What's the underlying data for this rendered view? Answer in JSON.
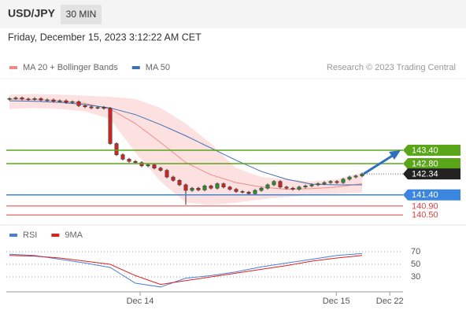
{
  "header": {
    "symbol": "USD/JPY",
    "interval": "30 MIN",
    "datetime": "Friday, December 15, 2023 3:12:22 AM CET",
    "credit": "Research © 2023 Trading Central"
  },
  "chart_data": [
    {
      "type": "candlestick",
      "xlim": [
        -0.5,
        62.5
      ],
      "ylim": [
        140.19,
        146.26
      ],
      "up_color": "#2e8b2e",
      "down_color": "#c62828",
      "candles": {
        "open": [
          145.7,
          145.72,
          145.75,
          145.7,
          145.68,
          145.72,
          145.65,
          145.66,
          145.6,
          145.62,
          145.55,
          145.58,
          145.4,
          145.35,
          145.3,
          145.32,
          145.28,
          143.7,
          143.2,
          143.0,
          142.9,
          142.85,
          142.7,
          142.75,
          142.6,
          142.5,
          142.2,
          142.05,
          141.85,
          141.6,
          141.7,
          141.62,
          141.8,
          141.7,
          141.9,
          141.75,
          141.65,
          141.55,
          141.52,
          141.45,
          141.6,
          141.7,
          141.85,
          142.0,
          141.75,
          141.7,
          141.65,
          141.75,
          141.8,
          141.85,
          141.9,
          141.95,
          142.0,
          141.95,
          142.1,
          142.2,
          142.25
        ],
        "high": [
          145.78,
          145.81,
          145.81,
          145.76,
          145.78,
          145.78,
          145.72,
          145.72,
          145.68,
          145.68,
          145.64,
          145.64,
          145.46,
          145.41,
          145.38,
          145.38,
          145.34,
          143.76,
          143.26,
          143.06,
          142.96,
          142.91,
          142.81,
          142.81,
          142.66,
          142.56,
          142.26,
          142.11,
          141.91,
          141.76,
          141.76,
          141.86,
          141.86,
          141.96,
          141.96,
          141.81,
          141.71,
          141.61,
          141.58,
          141.66,
          141.76,
          141.91,
          142.06,
          142.06,
          141.81,
          141.76,
          141.81,
          141.86,
          141.91,
          141.96,
          142.01,
          142.06,
          142.06,
          142.16,
          142.26,
          142.31,
          142.4
        ],
        "low": [
          145.64,
          145.66,
          145.64,
          145.62,
          145.62,
          145.59,
          145.59,
          145.54,
          145.54,
          145.49,
          145.49,
          145.34,
          145.29,
          145.24,
          145.24,
          145.22,
          143.64,
          143.14,
          142.94,
          142.84,
          142.79,
          142.64,
          142.64,
          142.54,
          142.44,
          142.14,
          141.99,
          141.79,
          140.95,
          141.54,
          141.56,
          141.56,
          141.64,
          141.64,
          141.69,
          141.59,
          141.49,
          141.46,
          141.39,
          141.39,
          141.54,
          141.64,
          141.79,
          141.69,
          141.64,
          141.59,
          141.59,
          141.69,
          141.74,
          141.79,
          141.84,
          141.89,
          141.89,
          141.89,
          142.04,
          142.14,
          142.19
        ],
        "close": [
          145.72,
          145.75,
          145.7,
          145.68,
          145.72,
          145.65,
          145.66,
          145.6,
          145.62,
          145.55,
          145.58,
          145.4,
          145.35,
          145.3,
          145.32,
          145.28,
          143.7,
          143.2,
          143.0,
          142.9,
          142.85,
          142.7,
          142.75,
          142.6,
          142.5,
          142.2,
          142.05,
          141.85,
          141.6,
          141.7,
          141.62,
          141.8,
          141.7,
          141.9,
          141.75,
          141.65,
          141.55,
          141.52,
          141.45,
          141.6,
          141.7,
          141.85,
          142.0,
          141.75,
          141.7,
          141.65,
          141.75,
          141.8,
          141.85,
          141.9,
          141.95,
          142.0,
          141.95,
          142.1,
          142.2,
          142.25,
          142.34
        ]
      },
      "line_x": [
        0,
        4,
        8,
        12,
        16,
        20,
        24,
        28,
        32,
        36,
        40,
        44,
        48,
        52,
        56
      ],
      "bands": {
        "color": "#fde0e0",
        "upper": [
          145.9,
          145.92,
          145.9,
          145.85,
          145.8,
          145.7,
          145.3,
          144.6,
          143.7,
          142.6,
          142.2,
          142.1,
          142.0,
          142.1,
          142.4
        ],
        "lower": [
          145.25,
          145.3,
          145.25,
          145.15,
          144.8,
          143.3,
          142.0,
          141.05,
          140.95,
          141.05,
          141.2,
          141.3,
          141.4,
          141.45,
          141.5
        ]
      },
      "series": [
        {
          "name": "MA 20 + Bollinger Bands",
          "color": "#f08a8a",
          "values": [
            145.7,
            145.68,
            145.62,
            145.5,
            145.25,
            144.6,
            143.75,
            142.85,
            142.3,
            141.95,
            141.75,
            141.65,
            141.68,
            141.75,
            141.9
          ]
        },
        {
          "name": "MA 50",
          "color": "#3f6fb5",
          "values": [
            145.62,
            145.6,
            145.55,
            145.45,
            145.3,
            145.0,
            144.55,
            144.05,
            143.5,
            142.95,
            142.45,
            142.1,
            141.88,
            141.85,
            141.85
          ]
        }
      ],
      "levels": [
        {
          "price": {
            "value": 143.4,
            "label": "143.40"
          },
          "color": "#5aa51a",
          "box": true
        },
        {
          "price": {
            "value": 142.8,
            "label": "142.80"
          },
          "color": "#5aa51a",
          "box": true
        },
        {
          "price": {
            "value": 142.34,
            "label": "142.34"
          },
          "color": "#222222",
          "box": true
        },
        {
          "price": {
            "value": 141.4,
            "label": "141.40"
          },
          "color": "#3a86e0",
          "box": true
        },
        {
          "price": {
            "value": 140.9,
            "label": "140.90"
          },
          "color": "#e04040",
          "box": false
        },
        {
          "price": {
            "value": 140.5,
            "label": "140.50"
          },
          "color": "#e04040",
          "box": false
        }
      ]
    },
    {
      "type": "line",
      "xlim": [
        -0.5,
        62.5
      ],
      "ylim": [
        10,
        95
      ],
      "yticks": [
        70,
        50,
        30
      ],
      "xticks": [
        {
          "value": 20.75,
          "label": "Dec 14"
        },
        {
          "value": 51.9,
          "label": "Dec 15"
        },
        {
          "value": 60.4,
          "label": "Dec 22"
        }
      ],
      "x": [
        0,
        4,
        8,
        12,
        16,
        20,
        24,
        28,
        32,
        36,
        40,
        44,
        48,
        52,
        56
      ],
      "series": [
        {
          "name": "RSI",
          "color": "#4a7fd4",
          "values": [
            66,
            64,
            58,
            52,
            45,
            20,
            14,
            28,
            32,
            38,
            46,
            52,
            58,
            64,
            67
          ]
        },
        {
          "name": "9MA",
          "color": "#e02020",
          "values": [
            64,
            63,
            60,
            55,
            50,
            32,
            18,
            24,
            30,
            36,
            42,
            48,
            55,
            60,
            64
          ]
        }
      ]
    }
  ]
}
